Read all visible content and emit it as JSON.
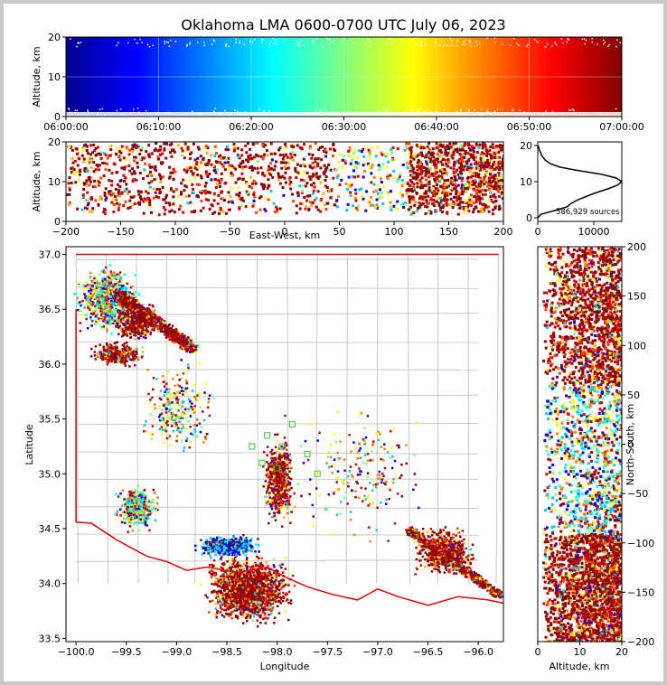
{
  "chart_data": [
    {
      "type": "scatter",
      "panel": "altitude-vs-time",
      "title": "Oklahoma LMA 0600-0700 UTC July 06, 2023",
      "xlabel": "",
      "ylabel": "Altitude, km",
      "xlim": [
        "06:00:00",
        "07:00:00"
      ],
      "ylim": [
        0,
        20
      ],
      "xticks": [
        "06:00:00",
        "06:10:00",
        "06:20:00",
        "06:30:00",
        "06:40:00",
        "06:50:00",
        "07:00:00"
      ],
      "yticks": [
        "0",
        "10",
        "20"
      ],
      "grid": true,
      "color_by": "time",
      "colormap": "jet"
    },
    {
      "type": "scatter",
      "panel": "altitude-vs-east-west",
      "xlabel": "East-West, km",
      "ylabel": "Altitude, km",
      "xlim": [
        -200,
        200
      ],
      "ylim": [
        0,
        20
      ],
      "xticks": [
        "−200",
        "−150",
        "−100",
        "−50",
        "0",
        "50",
        "100",
        "150",
        "200"
      ],
      "yticks": [
        "0",
        "10",
        "20"
      ],
      "clusters": [
        {
          "x_range": [
            -200,
            45
          ],
          "alt_range": [
            2,
            20
          ]
        },
        {
          "x_range": [
            110,
            200
          ],
          "alt_range": [
            2,
            20
          ]
        }
      ]
    },
    {
      "type": "line",
      "panel": "source-count-histogram",
      "xlabel": "",
      "ylabel": "",
      "xlim": [
        0,
        15000
      ],
      "ylim": [
        0,
        20
      ],
      "xticks": [
        "0",
        "10000"
      ],
      "yticks": [
        "0",
        "10",
        "20"
      ],
      "annotation": "586,929 sources",
      "series": [
        {
          "altitude_km": [
            0,
            1,
            2,
            3,
            4,
            5,
            6,
            7,
            8,
            9,
            10,
            11,
            12,
            13,
            14,
            15,
            16,
            17,
            18,
            19,
            20
          ],
          "count": [
            0,
            600,
            3000,
            5200,
            6000,
            7200,
            8800,
            10500,
            12500,
            14200,
            15000,
            14000,
            11500,
            7500,
            4000,
            2200,
            1300,
            800,
            500,
            250,
            100
          ]
        }
      ]
    },
    {
      "type": "scatter",
      "panel": "plan-view-map",
      "xlabel": "Longitude",
      "ylabel": "Latitude",
      "xlim": [
        -100.1,
        -95.75
      ],
      "ylim": [
        33.47,
        37.07
      ],
      "xticks": [
        "−100.0",
        "−99.5",
        "−99.0",
        "−98.5",
        "−98.0",
        "−97.5",
        "−97.0",
        "−96.5",
        "−96.0"
      ],
      "yticks": [
        "33.5",
        "34.0",
        "34.5",
        "35.0",
        "35.5",
        "36.0",
        "36.5",
        "37.0"
      ],
      "overlays": [
        "county-boundaries",
        "state-border-red",
        "network-stations-green"
      ]
    },
    {
      "type": "scatter",
      "panel": "north-south-vs-altitude",
      "xlabel": "Altitude, km",
      "ylabel": "North-South, km",
      "xlim": [
        0,
        20
      ],
      "ylim": [
        -200,
        200
      ],
      "xticks": [
        "0",
        "10",
        "20"
      ],
      "yticks": [
        "−200",
        "−150",
        "−100",
        "−50",
        "0",
        "50",
        "100",
        "150",
        "200"
      ]
    }
  ],
  "colors": {
    "state_border": "#e60000",
    "county_lines": "#c8c8c8",
    "stations": "#33cc33",
    "colormap": [
      "#00008f",
      "#0000ff",
      "#0080ff",
      "#00ffff",
      "#80ff80",
      "#ffff00",
      "#ff8000",
      "#ff0000",
      "#800000"
    ]
  }
}
